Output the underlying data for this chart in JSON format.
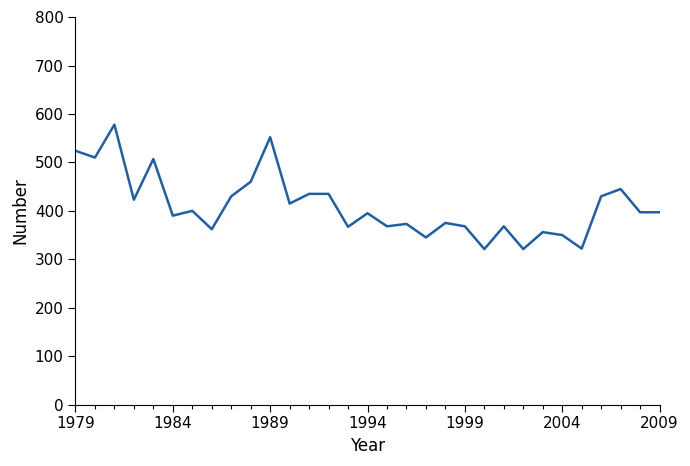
{
  "years": [
    1979,
    1980,
    1981,
    1982,
    1983,
    1984,
    1985,
    1986,
    1987,
    1988,
    1989,
    1990,
    1991,
    1992,
    1993,
    1994,
    1995,
    1996,
    1997,
    1998,
    1999,
    2000,
    2001,
    2002,
    2003,
    2004,
    2005,
    2006,
    2007,
    2008,
    2009
  ],
  "values": [
    524,
    510,
    578,
    423,
    507,
    390,
    400,
    362,
    430,
    460,
    552,
    415,
    435,
    435,
    367,
    395,
    368,
    373,
    345,
    375,
    368,
    321,
    368,
    321,
    356,
    350,
    322,
    430,
    445,
    397,
    397
  ],
  "line_color": "#1f5fa6",
  "line_width": 1.8,
  "xlabel": "Year",
  "ylabel": "Number",
  "xlim": [
    1979,
    2009
  ],
  "ylim": [
    0,
    800
  ],
  "yticks": [
    0,
    100,
    200,
    300,
    400,
    500,
    600,
    700,
    800
  ],
  "xticks": [
    1979,
    1984,
    1989,
    1994,
    1999,
    2004,
    2009
  ],
  "background_color": "#ffffff",
  "axis_label_fontsize": 12,
  "tick_fontsize": 11
}
